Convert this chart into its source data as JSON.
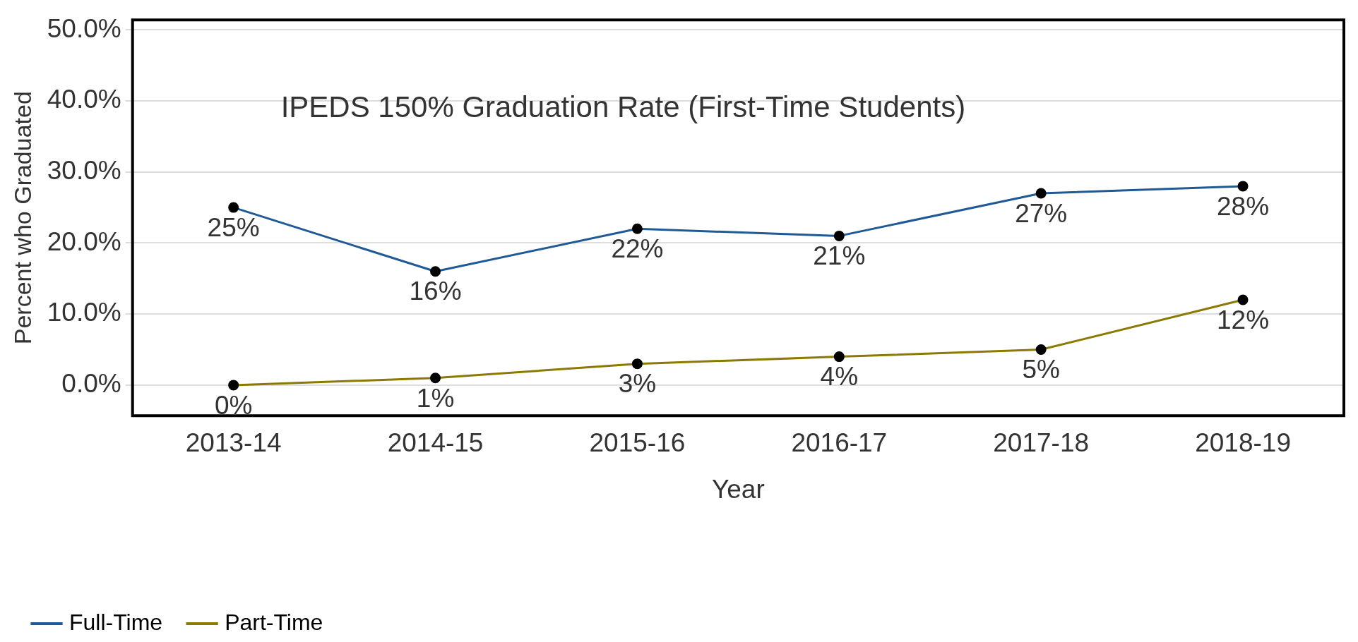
{
  "chart_data": {
    "type": "line",
    "title": "IPEDS 150% Graduation Rate (First-Time Students)",
    "xlabel": "Year",
    "ylabel": "Percent who Graduated",
    "categories": [
      "2013-14",
      "2014-15",
      "2015-16",
      "2016-17",
      "2017-18",
      "2018-19"
    ],
    "series": [
      {
        "name": "Full-Time",
        "color": "#1f5a96",
        "values": [
          25,
          16,
          22,
          21,
          27,
          28
        ],
        "value_labels": [
          "25%",
          "16%",
          "22%",
          "21%",
          "27%",
          "28%"
        ]
      },
      {
        "name": "Part-Time",
        "color": "#8c7a00",
        "values": [
          0,
          1,
          3,
          4,
          5,
          12
        ],
        "value_labels": [
          "0%",
          "1%",
          "3%",
          "4%",
          "5%",
          "12%"
        ]
      }
    ],
    "ylim": [
      -4.3,
      51.4
    ],
    "yticks": [
      {
        "value": 0,
        "label": "0.0%"
      },
      {
        "value": 10,
        "label": "10.0%"
      },
      {
        "value": 20,
        "label": "20.0%"
      },
      {
        "value": 30,
        "label": "30.0%"
      },
      {
        "value": 40,
        "label": "40.0%"
      },
      {
        "value": 50,
        "label": "50.0%"
      }
    ],
    "grid": "y",
    "legend": "bottom left",
    "marker": "circle",
    "line_style": "solid"
  }
}
